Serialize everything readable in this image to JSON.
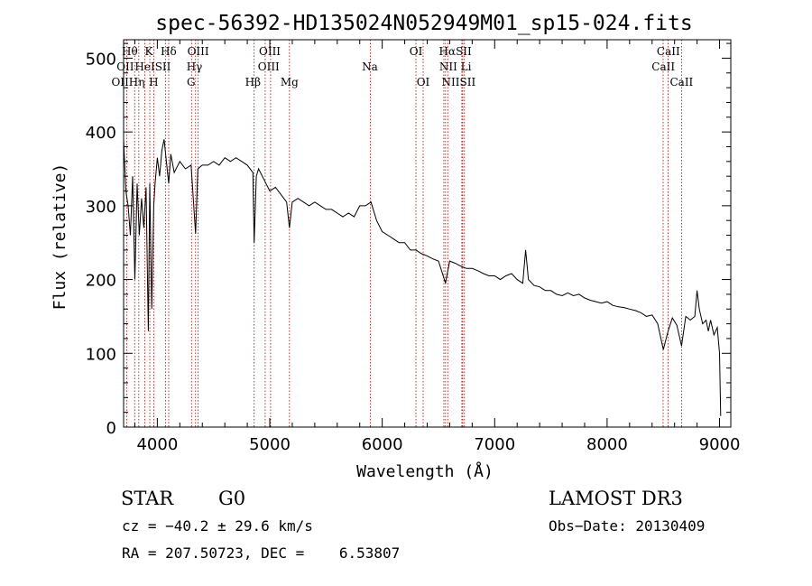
{
  "chart_data": {
    "type": "line",
    "title": "spec-56392-HD135024N052949M01_sp15-024.fits",
    "xlabel": "Wavelength (Å)",
    "ylabel": "Flux (relative)",
    "xlim": [
      3700,
      9100
    ],
    "ylim": [
      0,
      525
    ],
    "xticks": [
      4000,
      5000,
      6000,
      7000,
      8000,
      9000
    ],
    "yticks": [
      0,
      100,
      200,
      300,
      400,
      500
    ],
    "grid": false,
    "legend": "none",
    "series": [
      {
        "x": [
          3700,
          3720,
          3740,
          3760,
          3780,
          3800,
          3820,
          3840,
          3860,
          3880,
          3900,
          3920,
          3933,
          3950,
          3968,
          3980,
          4000,
          4020,
          4040,
          4060,
          4080,
          4101,
          4120,
          4150,
          4200,
          4250,
          4300,
          4340,
          4360,
          4400,
          4450,
          4500,
          4550,
          4600,
          4650,
          4700,
          4750,
          4800,
          4850,
          4861,
          4880,
          4900,
          4950,
          5000,
          5050,
          5100,
          5150,
          5175,
          5200,
          5250,
          5300,
          5350,
          5400,
          5450,
          5500,
          5550,
          5600,
          5650,
          5700,
          5750,
          5800,
          5850,
          5900,
          5950,
          6000,
          6050,
          6100,
          6150,
          6200,
          6250,
          6300,
          6350,
          6400,
          6450,
          6500,
          6563,
          6600,
          6650,
          6700,
          6750,
          6800,
          6850,
          6900,
          6950,
          7000,
          7050,
          7100,
          7150,
          7200,
          7250,
          7275,
          7300,
          7350,
          7400,
          7450,
          7500,
          7550,
          7600,
          7650,
          7700,
          7750,
          7800,
          7850,
          7900,
          7950,
          8000,
          8050,
          8100,
          8150,
          8200,
          8250,
          8300,
          8350,
          8400,
          8450,
          8500,
          8542,
          8580,
          8620,
          8662,
          8700,
          8740,
          8780,
          8800,
          8820,
          8850,
          8880,
          8900,
          8920,
          8950,
          8980,
          9000,
          9010
        ],
        "y": [
          390,
          320,
          300,
          260,
          340,
          200,
          330,
          260,
          310,
          270,
          325,
          130,
          330,
          160,
          300,
          330,
          365,
          340,
          375,
          390,
          360,
          330,
          370,
          345,
          360,
          350,
          355,
          262,
          350,
          355,
          355,
          360,
          355,
          365,
          360,
          365,
          360,
          355,
          345,
          250,
          340,
          350,
          335,
          320,
          325,
          315,
          305,
          270,
          305,
          310,
          305,
          300,
          305,
          300,
          295,
          295,
          290,
          285,
          290,
          285,
          300,
          300,
          305,
          280,
          265,
          260,
          255,
          250,
          250,
          240,
          240,
          235,
          232,
          228,
          225,
          195,
          225,
          222,
          218,
          215,
          215,
          212,
          208,
          205,
          205,
          200,
          205,
          208,
          200,
          195,
          240,
          200,
          192,
          190,
          185,
          185,
          180,
          178,
          182,
          178,
          180,
          175,
          172,
          170,
          168,
          170,
          165,
          163,
          162,
          160,
          158,
          155,
          150,
          152,
          140,
          105,
          130,
          148,
          138,
          110,
          150,
          145,
          150,
          185,
          160,
          140,
          145,
          130,
          145,
          125,
          135,
          100,
          15
        ]
      }
    ],
    "lines": [
      {
        "name": "OII",
        "x": 3727
      },
      {
        "name": "Hθ",
        "x": 3798
      },
      {
        "name": "Hη",
        "x": 3835
      },
      {
        "name": "HeI",
        "x": 3889
      },
      {
        "name": "K",
        "x": 3933
      },
      {
        "name": "H",
        "x": 3968
      },
      {
        "name": "SII",
        "x": 4072
      },
      {
        "name": "Hδ",
        "x": 4101
      },
      {
        "name": "G",
        "x": 4304
      },
      {
        "name": "Hγ",
        "x": 4340
      },
      {
        "name": "OIII",
        "x": 4363
      },
      {
        "name": "Hβ",
        "x": 4861
      },
      {
        "name": "OIII",
        "x": 4959
      },
      {
        "name": "OIII",
        "x": 5007
      },
      {
        "name": "Mg",
        "x": 5175
      },
      {
        "name": "Na",
        "x": 5894
      },
      {
        "name": "OI",
        "x": 6300
      },
      {
        "name": "OI",
        "x": 6364
      },
      {
        "name": "NII",
        "x": 6548
      },
      {
        "name": "Hα",
        "x": 6563
      },
      {
        "name": "NII",
        "x": 6583
      },
      {
        "name": "Li",
        "x": 6708
      },
      {
        "name": "SII",
        "x": 6716
      },
      {
        "name": "SII",
        "x": 6731
      },
      {
        "name": "CaII",
        "x": 8498
      },
      {
        "name": "CaII",
        "x": 8542
      },
      {
        "name": "CaII",
        "x": 8662
      }
    ],
    "line_labels": [
      {
        "text": "Hθ",
        "x": 3755,
        "row": 1
      },
      {
        "text": "K",
        "x": 3925,
        "row": 1
      },
      {
        "text": "Hδ",
        "x": 4100,
        "row": 1
      },
      {
        "text": "OIII",
        "x": 4363,
        "row": 1
      },
      {
        "text": "OIII",
        "x": 5000,
        "row": 1
      },
      {
        "text": "OI",
        "x": 6300,
        "row": 1
      },
      {
        "text": "HαSII",
        "x": 6650,
        "row": 1
      },
      {
        "text": "CaII",
        "x": 8545,
        "row": 1
      },
      {
        "text": "OII",
        "x": 3715,
        "row": 2
      },
      {
        "text": "HeISII",
        "x": 3960,
        "row": 2
      },
      {
        "text": "Hγ",
        "x": 4330,
        "row": 2
      },
      {
        "text": "OIII",
        "x": 4990,
        "row": 2
      },
      {
        "text": "Na",
        "x": 5890,
        "row": 2
      },
      {
        "text": "NII Li",
        "x": 6650,
        "row": 2
      },
      {
        "text": "CaII",
        "x": 8500,
        "row": 2
      },
      {
        "text": "OIIHη",
        "x": 3740,
        "row": 3
      },
      {
        "text": "H",
        "x": 3968,
        "row": 3
      },
      {
        "text": "G",
        "x": 4300,
        "row": 3
      },
      {
        "text": "Hβ",
        "x": 4850,
        "row": 3
      },
      {
        "text": "Mg",
        "x": 5175,
        "row": 3
      },
      {
        "text": "OI",
        "x": 6364,
        "row": 3
      },
      {
        "text": "NIISII",
        "x": 6680,
        "row": 3
      },
      {
        "text": "CaII",
        "x": 8662,
        "row": 3
      }
    ]
  },
  "info": {
    "object_class": "STAR",
    "subclass": "G0",
    "survey": "LAMOST DR3",
    "cz": "cz = −40.2 ± 29.6 km/s",
    "obs_date": "Obs−Date: 20130409",
    "coords": "RA = 207.50723, DEC =    6.53807"
  },
  "colors": {
    "spectrum": "#000000",
    "line_markers": "#b00000",
    "axes": "#000000",
    "background": "#ffffff"
  }
}
